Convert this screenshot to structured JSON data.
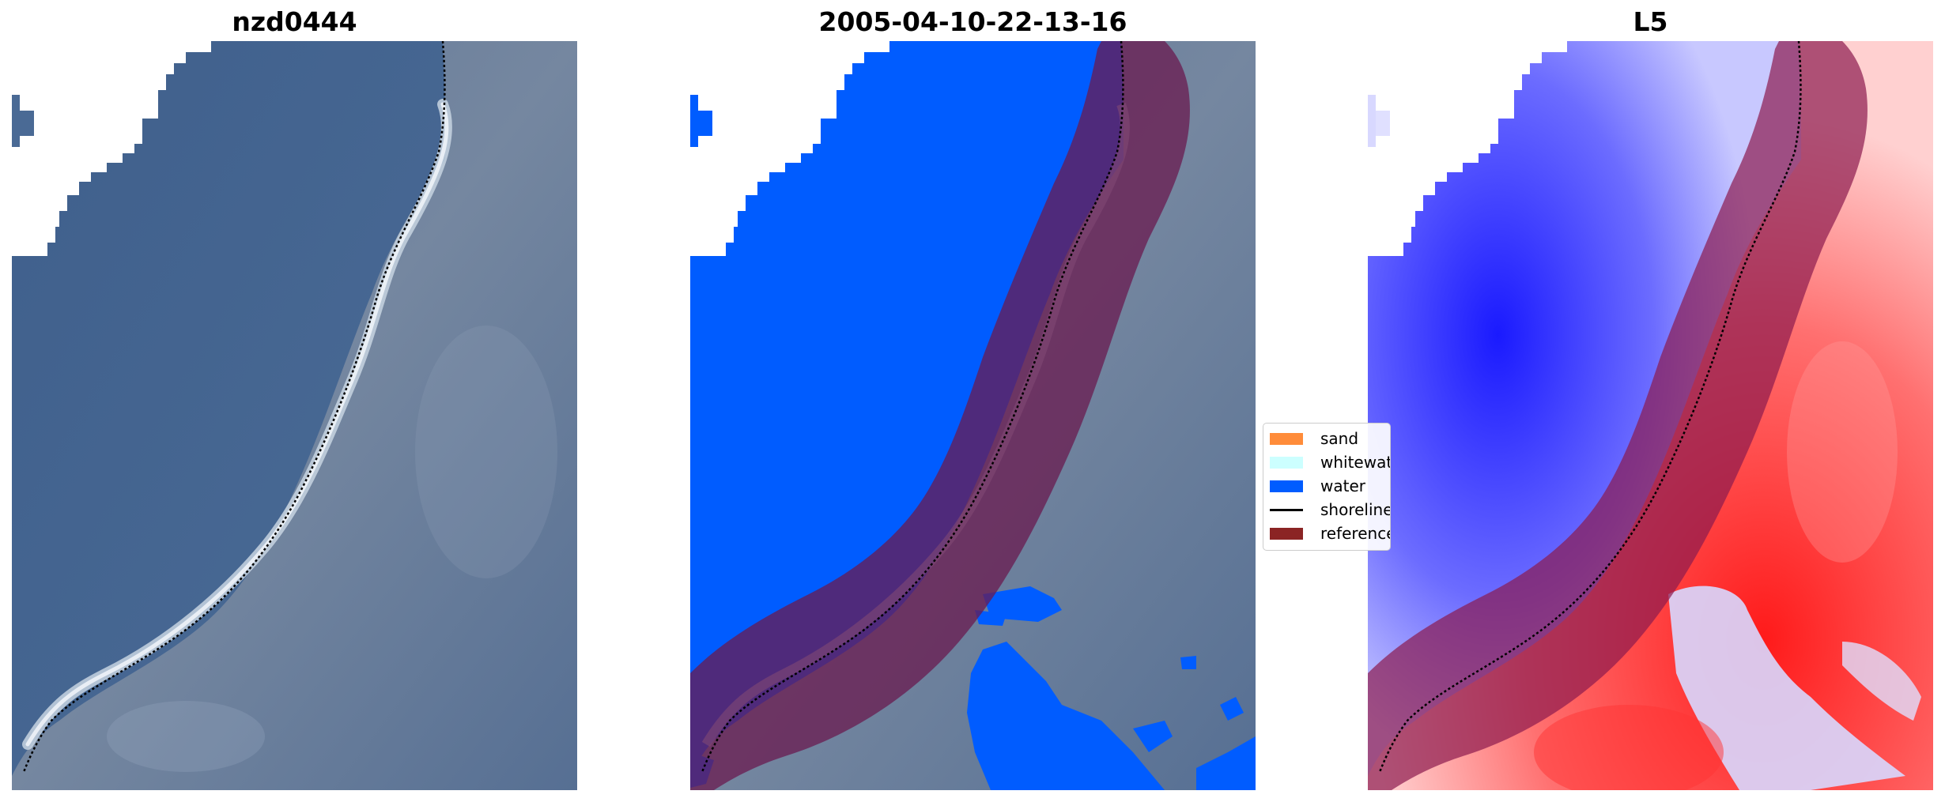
{
  "panels": [
    {
      "title": "nzd0444"
    },
    {
      "title": "2005-04-10-22-13-16"
    },
    {
      "title": "L5"
    }
  ],
  "legend": {
    "items": [
      {
        "label": "sand",
        "color": "#ff8c3a",
        "kind": "patch"
      },
      {
        "label": "whitewater",
        "color": "#ccffff",
        "kind": "patch"
      },
      {
        "label": "water",
        "color": "#005cff",
        "kind": "patch"
      },
      {
        "label": "shoreline",
        "color": "#000000",
        "kind": "line"
      },
      {
        "label": "reference shoreline buffer",
        "color": "#8b2424",
        "kind": "patch"
      }
    ]
  },
  "colors": {
    "sea": "#4a6a95",
    "land": "#6a7f9a",
    "water_class": "#005cff",
    "buffer": "#8b2424",
    "index_positive": "#ff0000",
    "index_negative": "#0000ff"
  }
}
